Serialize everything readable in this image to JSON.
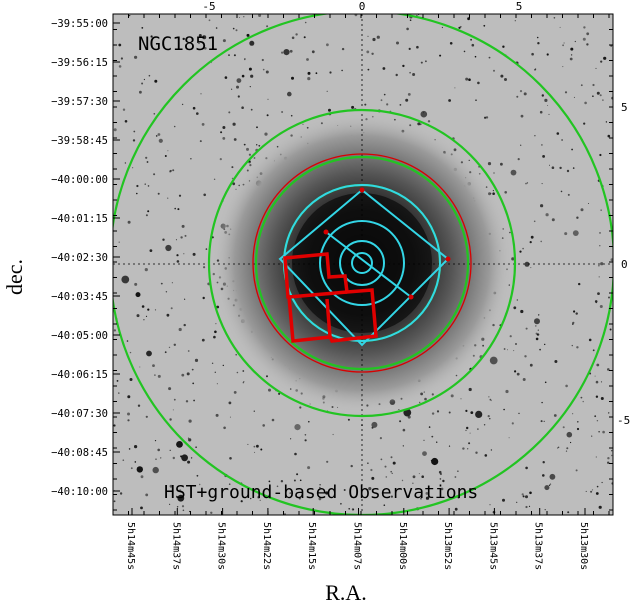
{
  "figure": {
    "cluster_label": "NGC1851",
    "caption": "HST+ground-based Observations",
    "xlabel": "R.A.",
    "ylabel": "dec.",
    "dec_ticks": [
      "-39:55:00",
      "-39:56:15",
      "-39:57:30",
      "-39:58:45",
      "-40:00:00",
      "-40:01:15",
      "-40:02:30",
      "-40:03:45",
      "-40:05:00",
      "-40:06:15",
      "-40:07:30",
      "-40:08:45",
      "-40:10:00"
    ],
    "ra_ticks": [
      "5h14m45s",
      "5h14m37s",
      "5h14m30s",
      "5h14m22s",
      "5h14m15s",
      "5h14m07s",
      "5h14m00s",
      "5h13m52s",
      "5h13m45s",
      "5h13m37s",
      "5h13m30s"
    ],
    "top_ticks": [
      "-5",
      "0",
      "5"
    ],
    "right_ticks": [
      "5",
      "0",
      "-5"
    ]
  },
  "colors": {
    "background_sky": "#bdbdbd",
    "green_circles": "#22c422",
    "red_circle": "#d80000",
    "cyan_overlay": "#33d6e6",
    "hst_footprint": "#e00000"
  }
}
